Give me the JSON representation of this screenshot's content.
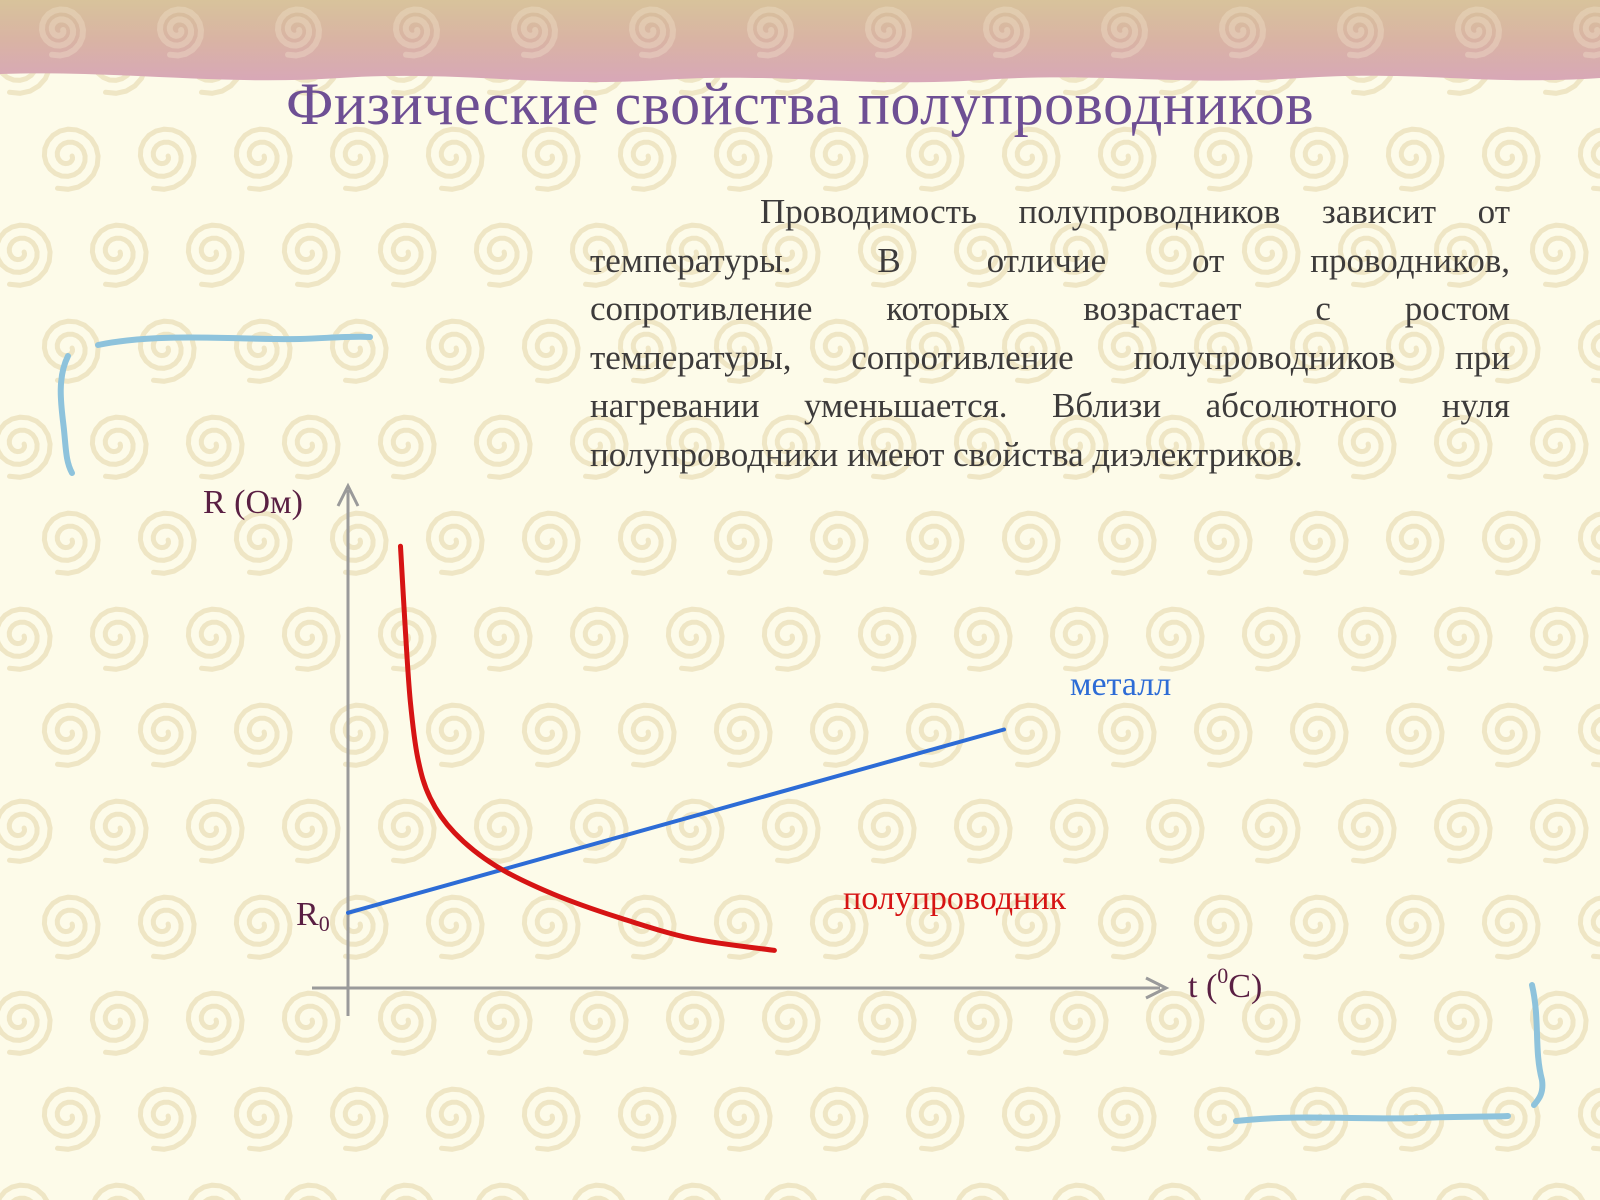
{
  "slide": {
    "title": "Физические свойства полупроводников",
    "paragraph_lines": [
      "Проводимость полупроводников зависит от",
      "температуры. В отличие от проводников,",
      "сопротивление которых возрастает с ростом",
      "температуры, сопротивление полупроводников при",
      "нагревании уменьшается.    Вблизи абсолютного нуля",
      "полупроводники имеют свойства диэлектриков."
    ]
  },
  "colors": {
    "background": "#fdfbe9",
    "title": "#6e4f94",
    "text": "#3d3b3b",
    "axis_label": "#5a1f43",
    "metal": "#2d6cd6",
    "semiconductor": "#d61414",
    "axis": "#9a9a9a",
    "bracket": "#8ec3dc",
    "swirl": "#efe6c5"
  },
  "chart_data": {
    "type": "line",
    "title": "",
    "ylabel": "R (Ом)",
    "xlabel_base": "t (",
    "xlabel_sup": "0",
    "xlabel_end": "C)",
    "ytick_base": "R",
    "ytick_sub": "0",
    "xlim": [
      0,
      10
    ],
    "ylim": [
      0,
      10
    ],
    "series": [
      {
        "name": "металл",
        "color": "#2d6cd6",
        "x": [
          0,
          8.0
        ],
        "y": [
          1.6,
          5.5
        ]
      },
      {
        "name": "полупроводник",
        "color": "#d61414",
        "x": [
          0.64,
          0.7,
          0.76,
          0.85,
          1.0,
          1.3,
          1.8,
          2.5,
          3.3,
          4.2,
          5.2
        ],
        "y": [
          9.4,
          7.6,
          6.1,
          4.9,
          4.05,
          3.3,
          2.6,
          2.0,
          1.5,
          1.05,
          0.8
        ]
      }
    ]
  }
}
